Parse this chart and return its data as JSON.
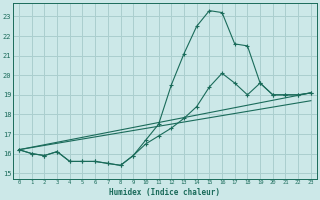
{
  "xlabel": "Humidex (Indice chaleur)",
  "xlim": [
    -0.5,
    23.5
  ],
  "ylim": [
    14.7,
    23.7
  ],
  "yticks": [
    15,
    16,
    17,
    18,
    19,
    20,
    21,
    22,
    23
  ],
  "xticks": [
    0,
    1,
    2,
    3,
    4,
    5,
    6,
    7,
    8,
    9,
    10,
    11,
    12,
    13,
    14,
    15,
    16,
    17,
    18,
    19,
    20,
    21,
    22,
    23
  ],
  "bg_color": "#cce8e8",
  "grid_color": "#aacece",
  "line_color": "#1a6b5a",
  "line1_x": [
    0,
    1,
    2,
    3,
    4,
    5,
    6,
    7,
    8,
    9,
    10,
    11,
    12,
    13,
    14,
    15,
    16,
    17,
    18,
    19,
    20,
    21,
    22,
    23
  ],
  "line1_y": [
    16.2,
    16.0,
    15.9,
    16.1,
    15.6,
    15.6,
    15.6,
    15.5,
    15.4,
    15.9,
    16.7,
    17.5,
    19.5,
    21.1,
    22.5,
    23.3,
    23.2,
    21.6,
    21.5,
    19.6,
    19.0,
    19.0,
    19.0,
    19.1
  ],
  "line2_x": [
    0,
    1,
    2,
    3,
    4,
    5,
    6,
    7,
    8,
    9,
    10,
    11,
    12,
    13,
    14,
    15,
    16,
    17,
    18,
    19,
    20,
    21,
    22,
    23
  ],
  "line2_y": [
    16.2,
    16.0,
    15.9,
    16.1,
    15.6,
    15.6,
    15.6,
    15.5,
    15.4,
    15.9,
    16.5,
    16.9,
    17.3,
    17.8,
    18.4,
    19.4,
    20.1,
    19.6,
    19.0,
    19.6,
    19.0,
    19.0,
    19.0,
    19.1
  ],
  "line3_x": [
    0,
    23
  ],
  "line3_y": [
    16.2,
    19.1
  ],
  "line4_x": [
    0,
    23
  ],
  "line4_y": [
    16.2,
    18.7
  ]
}
